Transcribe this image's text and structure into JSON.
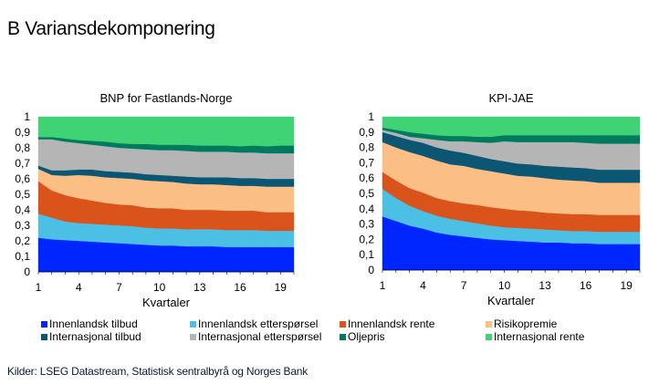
{
  "title": "B Variansdekomponering",
  "source": "Kilder: LSEG Datastream, Statistisk sentralbyrå og Norges Bank",
  "legend": [
    {
      "name": "Innenlandsk tilbud",
      "color": "#0026ff"
    },
    {
      "name": "Innenlandsk etterspørsel",
      "color": "#4bc0e4"
    },
    {
      "name": "Innenlandsk rente",
      "color": "#d9531a"
    },
    {
      "name": "Risikopremie",
      "color": "#fbbf85"
    },
    {
      "name": "Internasjonal tilbud",
      "color": "#0a5673"
    },
    {
      "name": "Internasjonal etterspørsel",
      "color": "#b5b5b5"
    },
    {
      "name": "Oljepris",
      "color": "#007a5e"
    },
    {
      "name": "Internasjonal rente",
      "color": "#3fd375"
    }
  ],
  "chart_data": [
    {
      "type": "area",
      "stacked": true,
      "title": "BNP for Fastlands-Norge",
      "xlabel": "Kvartaler",
      "ylabel": "",
      "ylim": [
        0,
        1
      ],
      "yticks": [
        "0",
        "0,1",
        "0,2",
        "0,3",
        "0,4",
        "0,5",
        "0,6",
        "0,7",
        "0,8",
        "0,9",
        "1"
      ],
      "xticks": [
        "1",
        "4",
        "7",
        "10",
        "13",
        "16",
        "19"
      ],
      "x": [
        1,
        2,
        3,
        4,
        5,
        6,
        7,
        8,
        9,
        10,
        11,
        12,
        13,
        14,
        15,
        16,
        17,
        18,
        19,
        20
      ],
      "series": [
        {
          "name": "Innenlandsk tilbud",
          "values": [
            0.22,
            0.21,
            0.205,
            0.2,
            0.195,
            0.19,
            0.185,
            0.18,
            0.175,
            0.17,
            0.17,
            0.165,
            0.165,
            0.165,
            0.16,
            0.16,
            0.16,
            0.16,
            0.16,
            0.16
          ]
        },
        {
          "name": "Innenlandsk etterspørsel",
          "values": [
            0.155,
            0.14,
            0.12,
            0.115,
            0.115,
            0.115,
            0.115,
            0.115,
            0.11,
            0.11,
            0.11,
            0.11,
            0.11,
            0.11,
            0.11,
            0.11,
            0.11,
            0.105,
            0.105,
            0.105
          ]
        },
        {
          "name": "Innenlandsk rente",
          "values": [
            0.21,
            0.175,
            0.17,
            0.16,
            0.15,
            0.14,
            0.135,
            0.135,
            0.13,
            0.13,
            0.13,
            0.125,
            0.125,
            0.125,
            0.125,
            0.125,
            0.125,
            0.12,
            0.12,
            0.12
          ]
        },
        {
          "name": "Risikopremie",
          "values": [
            0.08,
            0.1,
            0.125,
            0.15,
            0.16,
            0.165,
            0.17,
            0.17,
            0.175,
            0.175,
            0.17,
            0.17,
            0.165,
            0.165,
            0.165,
            0.16,
            0.16,
            0.165,
            0.165,
            0.165
          ]
        },
        {
          "name": "Internasjonal tilbud",
          "values": [
            0.02,
            0.03,
            0.035,
            0.035,
            0.04,
            0.04,
            0.04,
            0.04,
            0.04,
            0.04,
            0.04,
            0.045,
            0.045,
            0.045,
            0.05,
            0.05,
            0.05,
            0.05,
            0.05,
            0.05
          ]
        },
        {
          "name": "Internasjonal etterspørsel",
          "values": [
            0.17,
            0.2,
            0.185,
            0.17,
            0.16,
            0.16,
            0.155,
            0.155,
            0.16,
            0.16,
            0.165,
            0.165,
            0.165,
            0.165,
            0.165,
            0.165,
            0.165,
            0.165,
            0.165,
            0.165
          ]
        },
        {
          "name": "Oljepris",
          "values": [
            0.015,
            0.015,
            0.02,
            0.02,
            0.025,
            0.03,
            0.03,
            0.03,
            0.035,
            0.035,
            0.035,
            0.04,
            0.04,
            0.04,
            0.04,
            0.04,
            0.045,
            0.045,
            0.05,
            0.05
          ]
        },
        {
          "name": "Internasjonal rente",
          "values": [
            0.13,
            0.13,
            0.14,
            0.15,
            0.155,
            0.16,
            0.17,
            0.175,
            0.175,
            0.18,
            0.18,
            0.18,
            0.185,
            0.185,
            0.185,
            0.19,
            0.185,
            0.19,
            0.185,
            0.185
          ]
        }
      ]
    },
    {
      "type": "area",
      "stacked": true,
      "title": "KPI-JAE",
      "xlabel": "Kvartaler",
      "ylabel": "",
      "ylim": [
        0,
        1
      ],
      "yticks": [
        "0",
        "0,1",
        "0,2",
        "0,3",
        "0,4",
        "0,5",
        "0,6",
        "0,7",
        "0,8",
        "0,9",
        "1"
      ],
      "xticks": [
        "1",
        "4",
        "7",
        "10",
        "13",
        "16",
        "19"
      ],
      "x": [
        1,
        2,
        3,
        4,
        5,
        6,
        7,
        8,
        9,
        10,
        11,
        12,
        13,
        14,
        15,
        16,
        17,
        18,
        19,
        20
      ],
      "series": [
        {
          "name": "Innenlandsk tilbud",
          "values": [
            0.35,
            0.32,
            0.29,
            0.27,
            0.245,
            0.23,
            0.22,
            0.21,
            0.2,
            0.195,
            0.19,
            0.185,
            0.18,
            0.18,
            0.175,
            0.175,
            0.17,
            0.17,
            0.17,
            0.17
          ]
        },
        {
          "name": "Innenlandsk etterspørsel",
          "values": [
            0.18,
            0.15,
            0.13,
            0.115,
            0.11,
            0.105,
            0.1,
            0.095,
            0.09,
            0.085,
            0.085,
            0.085,
            0.085,
            0.08,
            0.08,
            0.08,
            0.08,
            0.08,
            0.08,
            0.08
          ]
        },
        {
          "name": "Innenlandsk rente",
          "values": [
            0.11,
            0.115,
            0.115,
            0.12,
            0.115,
            0.115,
            0.115,
            0.12,
            0.12,
            0.12,
            0.115,
            0.115,
            0.11,
            0.11,
            0.11,
            0.11,
            0.11,
            0.11,
            0.11,
            0.11
          ]
        },
        {
          "name": "Risikopremie",
          "values": [
            0.195,
            0.215,
            0.235,
            0.24,
            0.245,
            0.24,
            0.245,
            0.235,
            0.235,
            0.23,
            0.225,
            0.225,
            0.225,
            0.22,
            0.22,
            0.215,
            0.21,
            0.21,
            0.21,
            0.21
          ]
        },
        {
          "name": "Internasjonal tilbud",
          "values": [
            0.065,
            0.075,
            0.08,
            0.085,
            0.085,
            0.09,
            0.085,
            0.085,
            0.08,
            0.08,
            0.08,
            0.08,
            0.08,
            0.085,
            0.085,
            0.085,
            0.085,
            0.085,
            0.085,
            0.085
          ]
        },
        {
          "name": "Internasjonal etterspørsel",
          "values": [
            0.015,
            0.02,
            0.02,
            0.03,
            0.05,
            0.06,
            0.075,
            0.09,
            0.105,
            0.13,
            0.14,
            0.145,
            0.155,
            0.16,
            0.165,
            0.165,
            0.17,
            0.17,
            0.17,
            0.17
          ]
        },
        {
          "name": "Oljepris",
          "values": [
            0.015,
            0.02,
            0.03,
            0.03,
            0.03,
            0.035,
            0.035,
            0.035,
            0.04,
            0.04,
            0.045,
            0.045,
            0.045,
            0.045,
            0.045,
            0.05,
            0.055,
            0.055,
            0.055,
            0.055
          ]
        },
        {
          "name": "Internasjonal rente",
          "values": [
            0.07,
            0.085,
            0.1,
            0.11,
            0.12,
            0.125,
            0.125,
            0.13,
            0.13,
            0.12,
            0.12,
            0.12,
            0.12,
            0.12,
            0.12,
            0.12,
            0.12,
            0.12,
            0.12,
            0.12
          ]
        }
      ]
    }
  ]
}
